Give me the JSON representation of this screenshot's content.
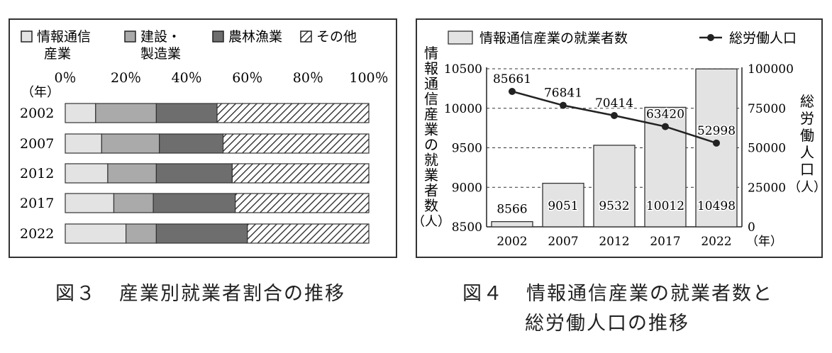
{
  "figures": {
    "fig3": {
      "label": "図３",
      "title": "産業別就業者割合の推移"
    },
    "fig4": {
      "label": "図４",
      "title_line1": "情報通信産業の就業者数と",
      "title_line2": "総労働人口の推移"
    }
  },
  "chart_data": [
    {
      "type": "bar",
      "orientation": "horizontal",
      "stacked": true,
      "title": "",
      "categories": [
        "2002",
        "2007",
        "2012",
        "2017",
        "2022"
      ],
      "category_label": "（年）",
      "x_ticks": [
        "0％",
        "20％",
        "40％",
        "60％",
        "80％",
        "100％"
      ],
      "xlim": [
        0,
        100
      ],
      "series": [
        {
          "name": "情報通信産業",
          "pattern": "light-gray",
          "color": "#e3e3e3",
          "values": [
            10,
            12,
            14,
            16,
            20
          ]
        },
        {
          "name": "建設・製造業",
          "pattern": "mid-gray",
          "color": "#aaaaaa",
          "values": [
            20,
            19,
            16,
            13,
            10
          ]
        },
        {
          "name": "農林漁業",
          "pattern": "dark-gray",
          "color": "#6e6e6e",
          "values": [
            20,
            21,
            25,
            27,
            30
          ]
        },
        {
          "name": "その他",
          "pattern": "hatched",
          "color": "#ffffff",
          "values": [
            50,
            48,
            45,
            44,
            40
          ]
        }
      ],
      "legend": [
        {
          "line1": "情報通信",
          "line2": "産業"
        },
        {
          "line1": "建設・",
          "line2": "製造業"
        },
        {
          "line1": "農林漁業",
          "line2": ""
        },
        {
          "line1": "その他",
          "line2": ""
        }
      ],
      "legend_placement": "top",
      "grid": false
    },
    {
      "type": "bar+line",
      "title": "",
      "categories": [
        "2002",
        "2007",
        "2012",
        "2017",
        "2022"
      ],
      "category_unit": "（年）",
      "bar_series": {
        "name": "情報通信産業の就業者数",
        "color": "#e3e3e3",
        "values": [
          8566,
          9051,
          9532,
          10012,
          10498
        ],
        "axis": "left"
      },
      "line_series": {
        "name": "総労働人口",
        "color": "#222222",
        "values": [
          85661,
          76841,
          70414,
          63420,
          52998
        ],
        "axis": "right"
      },
      "left_axis": {
        "label": "情報通信産業の就業者数（人）",
        "ylim": [
          8500,
          10500
        ],
        "ticks": [
          "8500",
          "9000",
          "9500",
          "10000",
          "10500"
        ]
      },
      "right_axis": {
        "label": "総労働人口（人）",
        "ylim": [
          0,
          100000
        ],
        "ticks": [
          "0",
          "25000",
          "50000",
          "75000",
          "100000"
        ]
      },
      "grid": "dashed horizontal",
      "legend_placement": "top"
    }
  ]
}
